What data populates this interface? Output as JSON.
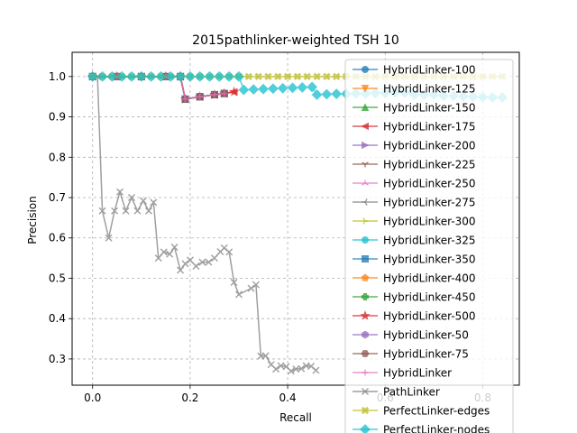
{
  "chart_data": {
    "type": "line",
    "title": "2015pathlinker-weighted TSH 10",
    "xlabel": "Recall",
    "ylabel": "Precision",
    "xlim": [
      -0.042,
      0.875
    ],
    "ylim": [
      0.235,
      1.06
    ],
    "xticks": [
      0.0,
      0.2,
      0.4,
      0.6,
      0.8
    ],
    "xtick_labels": [
      "0.0",
      "0.2",
      "0.4",
      "0.6",
      "0.8"
    ],
    "yticks": [
      0.3,
      0.4,
      0.5,
      0.6,
      0.7,
      0.8,
      0.9,
      1.0
    ],
    "ytick_labels": [
      "0.3",
      "0.4",
      "0.5",
      "0.6",
      "0.7",
      "0.8",
      "0.9",
      "1.0"
    ],
    "grid": true,
    "legend_position": "right",
    "series": [
      {
        "name": "HybridLinker-100",
        "color": "#1f77b4",
        "marker": "o",
        "x": [
          0.0,
          0.05,
          0.1,
          0.15,
          0.18,
          0.19,
          0.22,
          0.25,
          0.27
        ],
        "y": [
          1.0,
          1.0,
          1.0,
          1.0,
          1.0,
          0.944,
          0.95,
          0.955,
          0.958
        ]
      },
      {
        "name": "HybridLinker-125",
        "color": "#ff7f0e",
        "marker": "v",
        "x": [
          0.0,
          0.05,
          0.1,
          0.15,
          0.18,
          0.19,
          0.22,
          0.25,
          0.27
        ],
        "y": [
          1.0,
          1.0,
          1.0,
          1.0,
          1.0,
          0.944,
          0.95,
          0.955,
          0.958
        ]
      },
      {
        "name": "HybridLinker-150",
        "color": "#2ca02c",
        "marker": "^",
        "x": [
          0.0,
          0.05,
          0.1,
          0.15,
          0.18,
          0.19,
          0.22,
          0.25,
          0.27
        ],
        "y": [
          1.0,
          1.0,
          1.0,
          1.0,
          1.0,
          0.944,
          0.95,
          0.955,
          0.958
        ]
      },
      {
        "name": "HybridLinker-175",
        "color": "#d62728",
        "marker": "<",
        "x": [
          0.0,
          0.05,
          0.1,
          0.15,
          0.18,
          0.19,
          0.22,
          0.25,
          0.27,
          0.29
        ],
        "y": [
          1.0,
          1.0,
          1.0,
          1.0,
          1.0,
          0.944,
          0.95,
          0.955,
          0.958,
          0.962
        ]
      },
      {
        "name": "HybridLinker-200",
        "color": "#9467bd",
        "marker": ">",
        "x": [
          0.0,
          0.05,
          0.1,
          0.15,
          0.18,
          0.19,
          0.22,
          0.25,
          0.27
        ],
        "y": [
          1.0,
          1.0,
          1.0,
          1.0,
          1.0,
          0.944,
          0.95,
          0.955,
          0.958
        ]
      },
      {
        "name": "HybridLinker-225",
        "color": "#8c564b",
        "marker": "1",
        "x": [
          0.0,
          0.05,
          0.1,
          0.15,
          0.18,
          0.19,
          0.22,
          0.25,
          0.27
        ],
        "y": [
          1.0,
          1.0,
          1.0,
          1.0,
          1.0,
          0.944,
          0.95,
          0.955,
          0.958
        ]
      },
      {
        "name": "HybridLinker-250",
        "color": "#e377c2",
        "marker": "2",
        "x": [
          0.0,
          0.05,
          0.1,
          0.15,
          0.18,
          0.19,
          0.22,
          0.25,
          0.27
        ],
        "y": [
          1.0,
          1.0,
          1.0,
          1.0,
          1.0,
          0.944,
          0.95,
          0.955,
          0.958
        ]
      },
      {
        "name": "HybridLinker-275",
        "color": "#7f7f7f",
        "marker": "3",
        "x": [
          0.0,
          0.05,
          0.1,
          0.15,
          0.18,
          0.19,
          0.22,
          0.25,
          0.27
        ],
        "y": [
          1.0,
          1.0,
          1.0,
          1.0,
          1.0,
          0.944,
          0.95,
          0.955,
          0.958
        ]
      },
      {
        "name": "HybridLinker-300",
        "color": "#bcbd22",
        "marker": "4",
        "x": [
          0.0,
          0.05,
          0.1,
          0.15,
          0.18,
          0.19,
          0.22,
          0.25,
          0.27
        ],
        "y": [
          1.0,
          1.0,
          1.0,
          1.0,
          1.0,
          0.944,
          0.95,
          0.955,
          0.958
        ]
      },
      {
        "name": "HybridLinker-325",
        "color": "#17becf",
        "marker": "o",
        "x": [
          0.0,
          0.05,
          0.1,
          0.15,
          0.18,
          0.19,
          0.22,
          0.25,
          0.27
        ],
        "y": [
          1.0,
          1.0,
          1.0,
          1.0,
          1.0,
          0.944,
          0.95,
          0.955,
          0.958
        ]
      },
      {
        "name": "HybridLinker-350",
        "color": "#1f77b4",
        "marker": "s",
        "x": [
          0.0,
          0.05,
          0.1,
          0.15,
          0.18,
          0.19,
          0.22,
          0.25,
          0.27
        ],
        "y": [
          1.0,
          1.0,
          1.0,
          1.0,
          1.0,
          0.944,
          0.95,
          0.955,
          0.958
        ]
      },
      {
        "name": "HybridLinker-400",
        "color": "#ff7f0e",
        "marker": "p",
        "x": [
          0.0,
          0.05,
          0.1,
          0.15,
          0.18,
          0.19,
          0.22,
          0.25,
          0.27
        ],
        "y": [
          1.0,
          1.0,
          1.0,
          1.0,
          1.0,
          0.944,
          0.95,
          0.955,
          0.958
        ]
      },
      {
        "name": "HybridLinker-450",
        "color": "#2ca02c",
        "marker": "P",
        "x": [
          0.0,
          0.05,
          0.1,
          0.15,
          0.18,
          0.19,
          0.22,
          0.25,
          0.27
        ],
        "y": [
          1.0,
          1.0,
          1.0,
          1.0,
          1.0,
          0.944,
          0.95,
          0.955,
          0.958
        ]
      },
      {
        "name": "HybridLinker-500",
        "color": "#d62728",
        "marker": "*",
        "x": [
          0.0,
          0.05,
          0.1,
          0.15,
          0.18,
          0.19,
          0.22,
          0.25,
          0.27,
          0.29
        ],
        "y": [
          1.0,
          1.0,
          1.0,
          1.0,
          1.0,
          0.944,
          0.95,
          0.955,
          0.958,
          0.962
        ]
      },
      {
        "name": "HybridLinker-50",
        "color": "#9467bd",
        "marker": "h",
        "x": [
          0.0,
          0.05,
          0.1,
          0.15,
          0.18,
          0.19,
          0.22,
          0.25,
          0.27
        ],
        "y": [
          1.0,
          1.0,
          1.0,
          1.0,
          1.0,
          0.944,
          0.95,
          0.955,
          0.958
        ]
      },
      {
        "name": "HybridLinker-75",
        "color": "#8c564b",
        "marker": "H",
        "x": [
          0.0,
          0.05,
          0.1,
          0.15,
          0.18,
          0.19,
          0.22,
          0.25,
          0.27
        ],
        "y": [
          1.0,
          1.0,
          1.0,
          1.0,
          1.0,
          0.944,
          0.95,
          0.955,
          0.958
        ]
      },
      {
        "name": "HybridLinker",
        "color": "#e377c2",
        "marker": "+",
        "x": [
          0.0,
          0.05,
          0.1,
          0.15,
          0.18,
          0.19,
          0.22,
          0.25,
          0.27
        ],
        "y": [
          1.0,
          1.0,
          1.0,
          1.0,
          1.0,
          0.944,
          0.95,
          0.955,
          0.958
        ]
      },
      {
        "name": "PathLinker",
        "color": "#7f7f7f",
        "marker": "x",
        "x": [
          0.0,
          0.01,
          0.02,
          0.033,
          0.045,
          0.056,
          0.068,
          0.08,
          0.092,
          0.104,
          0.115,
          0.125,
          0.135,
          0.146,
          0.158,
          0.168,
          0.18,
          0.19,
          0.2,
          0.212,
          0.225,
          0.238,
          0.25,
          0.262,
          0.27,
          0.28,
          0.29,
          0.3,
          0.325,
          0.335,
          0.345,
          0.355,
          0.366,
          0.376,
          0.386,
          0.397,
          0.407,
          0.417,
          0.428,
          0.438,
          0.448,
          0.458
        ],
        "y": [
          1.0,
          1.0,
          0.667,
          0.6,
          0.667,
          0.714,
          0.667,
          0.7,
          0.667,
          0.692,
          0.667,
          0.688,
          0.55,
          0.565,
          0.56,
          0.577,
          0.52,
          0.536,
          0.545,
          0.53,
          0.54,
          0.54,
          0.55,
          0.566,
          0.575,
          0.565,
          0.49,
          0.46,
          0.475,
          0.484,
          0.307,
          0.308,
          0.286,
          0.275,
          0.283,
          0.281,
          0.27,
          0.275,
          0.276,
          0.283,
          0.282,
          0.272
        ]
      },
      {
        "name": "PerfectLinker-edges",
        "color": "#bcbd22",
        "marker": "X",
        "x": [
          0.0,
          0.02,
          0.04,
          0.06,
          0.08,
          0.1,
          0.12,
          0.14,
          0.16,
          0.18,
          0.2,
          0.22,
          0.24,
          0.26,
          0.28,
          0.3,
          0.32,
          0.34,
          0.36,
          0.38,
          0.4,
          0.42,
          0.44,
          0.46,
          0.48,
          0.5,
          0.52,
          0.54,
          0.56,
          0.58,
          0.6,
          0.62,
          0.64,
          0.66,
          0.68,
          0.7,
          0.72,
          0.74,
          0.76,
          0.78,
          0.8,
          0.82,
          0.84
        ],
        "y": [
          1.0,
          1.0,
          1.0,
          1.0,
          1.0,
          1.0,
          1.0,
          1.0,
          1.0,
          1.0,
          1.0,
          1.0,
          1.0,
          1.0,
          1.0,
          1.0,
          1.0,
          1.0,
          1.0,
          1.0,
          1.0,
          1.0,
          1.0,
          1.0,
          1.0,
          1.0,
          1.0,
          1.0,
          1.0,
          1.0,
          1.0,
          1.0,
          1.0,
          1.0,
          1.0,
          1.0,
          1.0,
          1.0,
          1.0,
          1.0,
          1.0,
          1.0,
          1.0
        ]
      },
      {
        "name": "PerfectLinker-nodes",
        "color": "#17becf",
        "marker": "D",
        "x": [
          0.0,
          0.02,
          0.04,
          0.06,
          0.08,
          0.1,
          0.12,
          0.14,
          0.16,
          0.18,
          0.2,
          0.22,
          0.24,
          0.26,
          0.28,
          0.3,
          0.31,
          0.33,
          0.35,
          0.37,
          0.39,
          0.41,
          0.43,
          0.45,
          0.46,
          0.48,
          0.5,
          0.52,
          0.54,
          0.56,
          0.58,
          0.6,
          0.62,
          0.64,
          0.66,
          0.68,
          0.7,
          0.72,
          0.74,
          0.76,
          0.78,
          0.8,
          0.82,
          0.84
        ],
        "y": [
          1.0,
          1.0,
          1.0,
          1.0,
          1.0,
          1.0,
          1.0,
          1.0,
          1.0,
          1.0,
          1.0,
          1.0,
          1.0,
          1.0,
          1.0,
          1.0,
          0.967,
          0.968,
          0.969,
          0.97,
          0.971,
          0.972,
          0.973,
          0.974,
          0.955,
          0.956,
          0.957,
          0.957,
          0.958,
          0.958,
          0.959,
          0.959,
          0.96,
          0.96,
          0.955,
          0.955,
          0.955,
          0.952,
          0.952,
          0.951,
          0.95,
          0.949,
          0.948,
          0.948
        ]
      }
    ]
  }
}
